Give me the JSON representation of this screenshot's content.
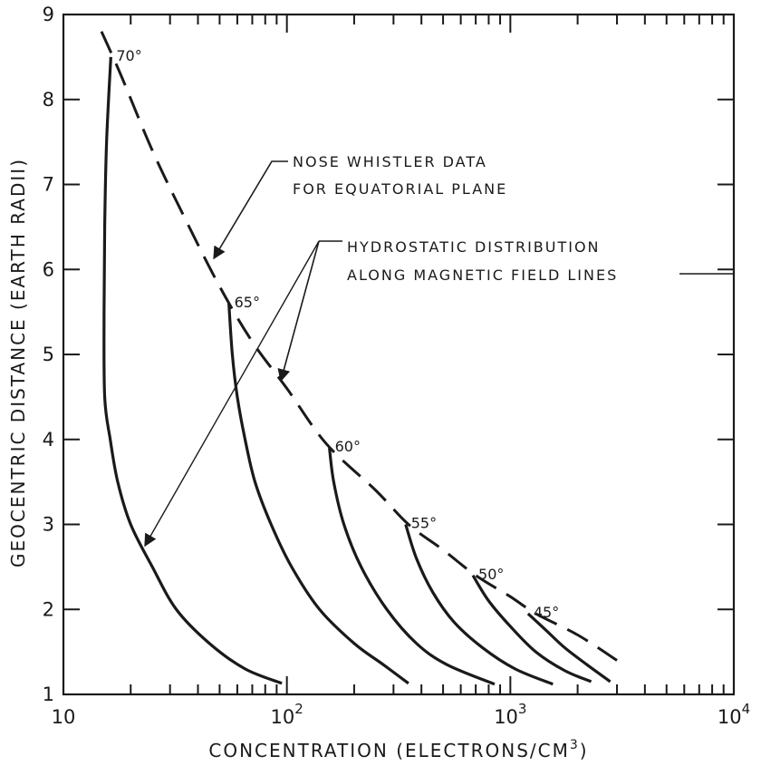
{
  "chart_data": {
    "type": "line",
    "xlabel": "CONCENTRATION (ELECTRONS/CM",
    "xlabel_sup": "3",
    "xlabel_close": ")",
    "ylabel": "GEOCENTRIC DISTANCE (EARTH RADII)",
    "x_scale": "log",
    "xlim": [
      10,
      10000
    ],
    "ylim": [
      1,
      9
    ],
    "x_ticks": [
      {
        "value": 10,
        "base": "10",
        "exp": ""
      },
      {
        "value": 100,
        "base": "10",
        "exp": "2"
      },
      {
        "value": 1000,
        "base": "10",
        "exp": "3"
      },
      {
        "value": 10000,
        "base": "10",
        "exp": "4"
      }
    ],
    "y_ticks": [
      "1",
      "2",
      "3",
      "4",
      "5",
      "6",
      "7",
      "8",
      "9"
    ],
    "series": [
      {
        "style": "dashed",
        "points": [
          [
            14.8,
            8.8
          ],
          [
            18,
            8.3
          ],
          [
            25,
            7.4
          ],
          [
            35,
            6.6
          ],
          [
            50,
            5.8
          ],
          [
            70,
            5.15
          ],
          [
            100,
            4.6
          ],
          [
            150,
            3.95
          ],
          [
            250,
            3.4
          ],
          [
            350,
            3.0
          ],
          [
            500,
            2.7
          ],
          [
            700,
            2.4
          ],
          [
            1000,
            2.15
          ],
          [
            1300,
            1.95
          ],
          [
            2000,
            1.7
          ],
          [
            3000,
            1.4
          ]
        ]
      },
      {
        "label": "70°",
        "style": "solid",
        "points": [
          [
            16.3,
            8.5
          ],
          [
            15.6,
            7.5
          ],
          [
            15.3,
            6.5
          ],
          [
            15.2,
            5.5
          ],
          [
            15.3,
            4.5
          ],
          [
            16.2,
            4.0
          ],
          [
            17.5,
            3.5
          ],
          [
            20,
            3.0
          ],
          [
            25,
            2.5
          ],
          [
            32,
            2.0
          ],
          [
            45,
            1.6
          ],
          [
            65,
            1.3
          ],
          [
            95,
            1.13
          ]
        ]
      },
      {
        "label": "65°",
        "style": "solid",
        "points": [
          [
            55,
            5.6
          ],
          [
            57,
            5.0
          ],
          [
            60,
            4.5
          ],
          [
            65,
            4.0
          ],
          [
            72,
            3.5
          ],
          [
            85,
            3.0
          ],
          [
            105,
            2.5
          ],
          [
            140,
            2.0
          ],
          [
            200,
            1.6
          ],
          [
            270,
            1.35
          ],
          [
            350,
            1.13
          ]
        ]
      },
      {
        "label": "60°",
        "style": "solid",
        "points": [
          [
            155,
            3.9
          ],
          [
            162,
            3.5
          ],
          [
            180,
            3.0
          ],
          [
            215,
            2.5
          ],
          [
            280,
            2.0
          ],
          [
            380,
            1.6
          ],
          [
            520,
            1.35
          ],
          [
            850,
            1.12
          ]
        ]
      },
      {
        "label": "55°",
        "style": "solid",
        "points": [
          [
            340,
            3.0
          ],
          [
            380,
            2.6
          ],
          [
            450,
            2.2
          ],
          [
            560,
            1.85
          ],
          [
            750,
            1.55
          ],
          [
            1050,
            1.3
          ],
          [
            1550,
            1.12
          ]
        ]
      },
      {
        "label": "50°",
        "style": "solid",
        "points": [
          [
            680,
            2.4
          ],
          [
            800,
            2.1
          ],
          [
            1000,
            1.8
          ],
          [
            1300,
            1.5
          ],
          [
            1750,
            1.28
          ],
          [
            2300,
            1.15
          ]
        ]
      },
      {
        "label": "45°",
        "style": "solid",
        "points": [
          [
            1200,
            1.95
          ],
          [
            1450,
            1.75
          ],
          [
            1750,
            1.55
          ],
          [
            2200,
            1.35
          ],
          [
            2800,
            1.15
          ]
        ]
      }
    ],
    "annotations": [
      {
        "lines": [
          "NOSE WHISTLER DATA",
          "FOR EQUATORIAL PLANE"
        ]
      },
      {
        "lines": [
          "HYDROSTATIC DISTRIBUTION",
          "ALONG MAGNETIC FIELD LINES"
        ]
      }
    ],
    "grid": false,
    "legend": "none"
  }
}
